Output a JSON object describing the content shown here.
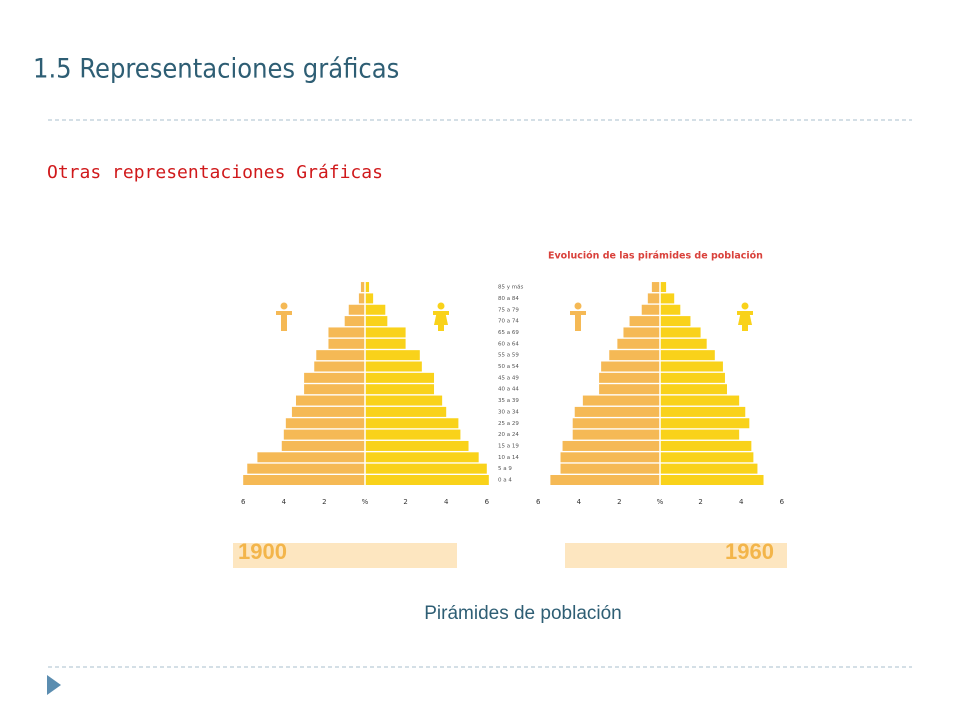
{
  "slide": {
    "title": "1.5 Representaciones gráficas",
    "subtitle": "Otras representaciones Gráficas",
    "figure_title": "Evolución de las pirámides de población",
    "caption": "Pirámides de población"
  },
  "chart_data": [
    {
      "type": "pyramid",
      "title": "1900",
      "categories": [
        "0 a 4",
        "5 a 9",
        "10 a 14",
        "15 a 19",
        "20 a 24",
        "25 a 29",
        "30 a 34",
        "35 a 39",
        "40 a 44",
        "45 a 49",
        "50 a 54",
        "55 a 59",
        "60 a 64",
        "65 a 69",
        "70 a 74",
        "75 a 79",
        "80 a 84",
        "85 y más"
      ],
      "series": [
        {
          "color": "#f5b955",
          "side": "left",
          "values": [
            6.0,
            5.8,
            5.3,
            4.1,
            4.0,
            3.9,
            3.6,
            3.4,
            3.0,
            3.0,
            2.5,
            2.4,
            1.8,
            1.8,
            1.0,
            0.8,
            0.3,
            0.2
          ]
        },
        {
          "color": "#f9d21a",
          "side": "right",
          "values": [
            6.1,
            6.0,
            5.6,
            5.1,
            4.7,
            4.6,
            4.0,
            3.8,
            3.4,
            3.4,
            2.8,
            2.7,
            2.0,
            2.0,
            1.1,
            1.0,
            0.4,
            0.2
          ]
        }
      ],
      "xlim": [
        -6,
        6
      ],
      "xticks": [
        {
          "value": -6,
          "label": "6"
        },
        {
          "value": -4,
          "label": "4"
        },
        {
          "value": -2,
          "label": "2"
        },
        {
          "value": 0,
          "label": "%"
        },
        2,
        4,
        6
      ]
    },
    {
      "type": "pyramid",
      "title": "1960",
      "series": [
        {
          "color": "#f5b955",
          "side": "left",
          "values": [
            5.4,
            4.9,
            4.9,
            4.8,
            4.3,
            4.3,
            4.2,
            3.8,
            3.0,
            3.0,
            2.9,
            2.5,
            2.1,
            1.8,
            1.5,
            0.9,
            0.6,
            0.4
          ]
        },
        {
          "color": "#f9d21a",
          "side": "right",
          "values": [
            5.1,
            4.8,
            4.6,
            4.5,
            3.9,
            4.4,
            4.2,
            3.9,
            3.3,
            3.2,
            3.1,
            2.7,
            2.3,
            2.0,
            1.5,
            1.0,
            0.7,
            0.3
          ]
        }
      ],
      "xlim": [
        -6,
        6
      ],
      "xticks": [
        {
          "value": -6,
          "label": "6"
        },
        {
          "value": -4,
          "label": "4"
        },
        {
          "value": -2,
          "label": "2"
        },
        {
          "value": 0,
          "label": "%"
        },
        2,
        4,
        6
      ]
    }
  ]
}
